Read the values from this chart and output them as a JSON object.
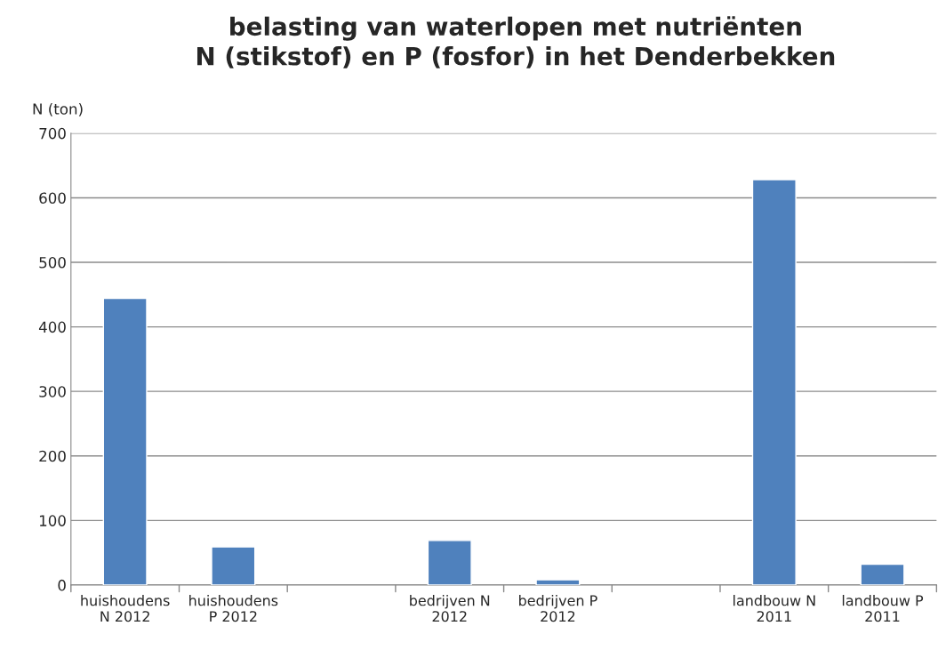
{
  "chart_data": {
    "type": "bar",
    "title": "belasting van waterlopen met nutriënten\nN (stikstof) en P (fosfor) in het Denderbekken",
    "ylabel": "N (ton)",
    "categories": [
      "huishoudens\nN 2012",
      "huishoudens\nP 2012",
      null,
      "bedrijven N\n2012",
      "bedrijven P\n2012",
      null,
      "landbouw N\n2011",
      "landbouw P\n2011"
    ],
    "values": [
      444,
      59,
      null,
      69,
      8,
      null,
      628,
      32
    ],
    "color": "#4f81bd",
    "ylim": [
      0,
      700
    ],
    "yticks": [
      0,
      100,
      200,
      300,
      400,
      500,
      600,
      700
    ],
    "grid": "y"
  }
}
